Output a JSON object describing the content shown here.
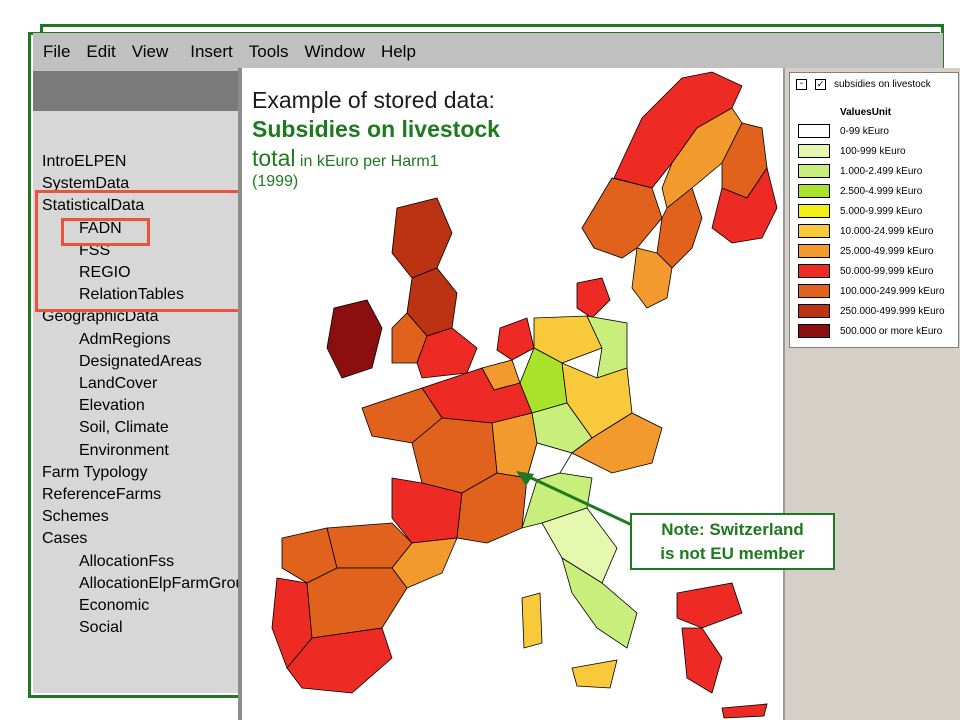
{
  "menu": [
    "File",
    "Edit",
    "View",
    "Insert",
    "Tools",
    "Window",
    "Help"
  ],
  "tree": {
    "items": [
      {
        "label": "IntroELPEN",
        "indent": 0
      },
      {
        "label": "SystemData",
        "indent": 0
      },
      {
        "label": "StatisticalData",
        "indent": 0
      },
      {
        "label": "FADN",
        "indent": 1
      },
      {
        "label": "FSS",
        "indent": 1
      },
      {
        "label": "REGIO",
        "indent": 1
      },
      {
        "label": "RelationTables",
        "indent": 1
      },
      {
        "label": "GeographicData",
        "indent": 0
      },
      {
        "label": "AdmRegions",
        "indent": 1
      },
      {
        "label": "DesignatedAreas",
        "indent": 1
      },
      {
        "label": "LandCover",
        "indent": 1
      },
      {
        "label": "Elevation",
        "indent": 1
      },
      {
        "label": "Soil, Climate",
        "indent": 1
      },
      {
        "label": "Environment",
        "indent": 1
      },
      {
        "label": "Farm Typology",
        "indent": 0
      },
      {
        "label": "ReferenceFarms",
        "indent": 0
      },
      {
        "label": "Schemes",
        "indent": 0
      },
      {
        "label": "Cases",
        "indent": 0
      },
      {
        "label": "AllocationFss",
        "indent": 1
      },
      {
        "label": "AllocationElpFarmGroups",
        "indent": 1
      },
      {
        "label": "Economic",
        "indent": 1
      },
      {
        "label": "Social",
        "indent": 1
      }
    ]
  },
  "map": {
    "title_line1": "Example of stored data:",
    "title_line2": "Subsidies on livestock",
    "title_line3_big": "total",
    "title_line3_small": " in kEuro per Harm1",
    "title_line4": "(1999)"
  },
  "legend": {
    "layer_name": "subsidies on livestock",
    "header": "ValuesUnit",
    "classes": [
      {
        "label": "0-99 kEuro",
        "color": "#ffffff"
      },
      {
        "label": "100-999 kEuro",
        "color": "#e6f7b0"
      },
      {
        "label": "1.000-2.499 kEuro",
        "color": "#c8ee7c"
      },
      {
        "label": "2.500-4.999 kEuro",
        "color": "#a8e22a"
      },
      {
        "label": "5.000-9.999 kEuro",
        "color": "#f5ee12"
      },
      {
        "label": "10.000-24.999 kEuro",
        "color": "#f8c93a"
      },
      {
        "label": "25.000-49.999 kEuro",
        "color": "#f39a2e"
      },
      {
        "label": "50.000-99.999 kEuro",
        "color": "#ee2a24"
      },
      {
        "label": "100.000-249.999 kEuro",
        "color": "#e0621c"
      },
      {
        "label": "250.000-499.999 kEuro",
        "color": "#bb3312"
      },
      {
        "label": "500.000 or more kEuro",
        "color": "#8c0f0f"
      }
    ]
  },
  "note": {
    "line1": "Note: Switzerland",
    "line2": "is not EU member"
  },
  "colors": {
    "frame": "#1e7a1e",
    "highlight": "#e8553a"
  }
}
